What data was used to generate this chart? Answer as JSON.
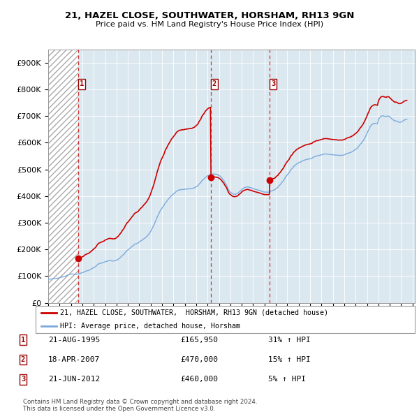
{
  "title": "21, HAZEL CLOSE, SOUTHWATER, HORSHAM, RH13 9GN",
  "subtitle": "Price paid vs. HM Land Registry's House Price Index (HPI)",
  "legend_label_red": "21, HAZEL CLOSE, SOUTHWATER,  HORSHAM, RH13 9GN (detached house)",
  "legend_label_blue": "HPI: Average price, detached house, Horsham",
  "footer1": "Contains HM Land Registry data © Crown copyright and database right 2024.",
  "footer2": "This data is licensed under the Open Government Licence v3.0.",
  "transactions": [
    {
      "num": 1,
      "date": "21-AUG-1995",
      "price": 165950,
      "pct": "31%",
      "dir": "↑"
    },
    {
      "num": 2,
      "date": "18-APR-2007",
      "price": 470000,
      "pct": "15%",
      "dir": "↑"
    },
    {
      "num": 3,
      "date": "21-JUN-2012",
      "price": 460000,
      "pct": "5%",
      "dir": "↑"
    }
  ],
  "transaction_years": [
    1995.64,
    2007.3,
    2012.47
  ],
  "ylim": [
    0,
    950000
  ],
  "yticks": [
    0,
    100000,
    200000,
    300000,
    400000,
    500000,
    600000,
    700000,
    800000,
    900000
  ],
  "ytick_labels": [
    "£0",
    "£100K",
    "£200K",
    "£300K",
    "£400K",
    "£500K",
    "£600K",
    "£700K",
    "£800K",
    "£900K"
  ],
  "hpi_color": "#7aaadd",
  "price_color": "#cc0000",
  "marker_color": "#cc0000",
  "dashed_color": "#cc3333",
  "background_color": "#dce8f0",
  "hpi_data_dates": [
    1993.0,
    1993.08,
    1993.17,
    1993.25,
    1993.33,
    1993.42,
    1993.5,
    1993.58,
    1993.67,
    1993.75,
    1993.83,
    1993.92,
    1994.0,
    1994.08,
    1994.17,
    1994.25,
    1994.33,
    1994.42,
    1994.5,
    1994.58,
    1994.67,
    1994.75,
    1994.83,
    1994.92,
    1995.0,
    1995.08,
    1995.17,
    1995.25,
    1995.33,
    1995.42,
    1995.5,
    1995.58,
    1995.67,
    1995.75,
    1995.83,
    1995.92,
    1996.0,
    1996.08,
    1996.17,
    1996.25,
    1996.33,
    1996.42,
    1996.5,
    1996.58,
    1996.67,
    1996.75,
    1996.83,
    1996.92,
    1997.0,
    1997.08,
    1997.17,
    1997.25,
    1997.33,
    1997.42,
    1997.5,
    1997.58,
    1997.67,
    1997.75,
    1997.83,
    1997.92,
    1998.0,
    1998.08,
    1998.17,
    1998.25,
    1998.33,
    1998.42,
    1998.5,
    1998.58,
    1998.67,
    1998.75,
    1998.83,
    1998.92,
    1999.0,
    1999.08,
    1999.17,
    1999.25,
    1999.33,
    1999.42,
    1999.5,
    1999.58,
    1999.67,
    1999.75,
    1999.83,
    1999.92,
    2000.0,
    2000.08,
    2000.17,
    2000.25,
    2000.33,
    2000.42,
    2000.5,
    2000.58,
    2000.67,
    2000.75,
    2000.83,
    2000.92,
    2001.0,
    2001.08,
    2001.17,
    2001.25,
    2001.33,
    2001.42,
    2001.5,
    2001.58,
    2001.67,
    2001.75,
    2001.83,
    2001.92,
    2002.0,
    2002.08,
    2002.17,
    2002.25,
    2002.33,
    2002.42,
    2002.5,
    2002.58,
    2002.67,
    2002.75,
    2002.83,
    2002.92,
    2003.0,
    2003.08,
    2003.17,
    2003.25,
    2003.33,
    2003.42,
    2003.5,
    2003.58,
    2003.67,
    2003.75,
    2003.83,
    2003.92,
    2004.0,
    2004.08,
    2004.17,
    2004.25,
    2004.33,
    2004.42,
    2004.5,
    2004.58,
    2004.67,
    2004.75,
    2004.83,
    2004.92,
    2005.0,
    2005.08,
    2005.17,
    2005.25,
    2005.33,
    2005.42,
    2005.5,
    2005.58,
    2005.67,
    2005.75,
    2005.83,
    2005.92,
    2006.0,
    2006.08,
    2006.17,
    2006.25,
    2006.33,
    2006.42,
    2006.5,
    2006.58,
    2006.67,
    2006.75,
    2006.83,
    2006.92,
    2007.0,
    2007.08,
    2007.17,
    2007.25,
    2007.33,
    2007.42,
    2007.5,
    2007.58,
    2007.67,
    2007.75,
    2007.83,
    2007.92,
    2008.0,
    2008.08,
    2008.17,
    2008.25,
    2008.33,
    2008.42,
    2008.5,
    2008.58,
    2008.67,
    2008.75,
    2008.83,
    2008.92,
    2009.0,
    2009.08,
    2009.17,
    2009.25,
    2009.33,
    2009.42,
    2009.5,
    2009.58,
    2009.67,
    2009.75,
    2009.83,
    2009.92,
    2010.0,
    2010.08,
    2010.17,
    2010.25,
    2010.33,
    2010.42,
    2010.5,
    2010.58,
    2010.67,
    2010.75,
    2010.83,
    2010.92,
    2011.0,
    2011.08,
    2011.17,
    2011.25,
    2011.33,
    2011.42,
    2011.5,
    2011.58,
    2011.67,
    2011.75,
    2011.83,
    2011.92,
    2012.0,
    2012.08,
    2012.17,
    2012.25,
    2012.33,
    2012.42,
    2012.5,
    2012.58,
    2012.67,
    2012.75,
    2012.83,
    2012.92,
    2013.0,
    2013.08,
    2013.17,
    2013.25,
    2013.33,
    2013.42,
    2013.5,
    2013.58,
    2013.67,
    2013.75,
    2013.83,
    2013.92,
    2014.0,
    2014.08,
    2014.17,
    2014.25,
    2014.33,
    2014.42,
    2014.5,
    2014.58,
    2014.67,
    2014.75,
    2014.83,
    2014.92,
    2015.0,
    2015.08,
    2015.17,
    2015.25,
    2015.33,
    2015.42,
    2015.5,
    2015.58,
    2015.67,
    2015.75,
    2015.83,
    2015.92,
    2016.0,
    2016.08,
    2016.17,
    2016.25,
    2016.33,
    2016.42,
    2016.5,
    2016.58,
    2016.67,
    2016.75,
    2016.83,
    2016.92,
    2017.0,
    2017.08,
    2017.17,
    2017.25,
    2017.33,
    2017.42,
    2017.5,
    2017.58,
    2017.67,
    2017.75,
    2017.83,
    2017.92,
    2018.0,
    2018.08,
    2018.17,
    2018.25,
    2018.33,
    2018.42,
    2018.5,
    2018.58,
    2018.67,
    2018.75,
    2018.83,
    2018.92,
    2019.0,
    2019.08,
    2019.17,
    2019.25,
    2019.33,
    2019.42,
    2019.5,
    2019.58,
    2019.67,
    2019.75,
    2019.83,
    2019.92,
    2020.0,
    2020.08,
    2020.17,
    2020.25,
    2020.33,
    2020.42,
    2020.5,
    2020.58,
    2020.67,
    2020.75,
    2020.83,
    2020.92,
    2021.0,
    2021.08,
    2021.17,
    2021.25,
    2021.33,
    2021.42,
    2021.5,
    2021.58,
    2021.67,
    2021.75,
    2021.83,
    2021.92,
    2022.0,
    2022.08,
    2022.17,
    2022.25,
    2022.33,
    2022.42,
    2022.5,
    2022.58,
    2022.67,
    2022.75,
    2022.83,
    2022.92,
    2023.0,
    2023.08,
    2023.17,
    2023.25,
    2023.33,
    2023.42,
    2023.5,
    2023.58,
    2023.67,
    2023.75,
    2023.83,
    2023.92,
    2024.0,
    2024.08,
    2024.17,
    2024.25,
    2024.33,
    2024.42,
    2024.5
  ],
  "hpi_data_values": [
    88000,
    88500,
    89000,
    89500,
    90000,
    90500,
    91000,
    91000,
    91000,
    91500,
    92000,
    93000,
    94000,
    95000,
    96000,
    97000,
    98000,
    99000,
    100000,
    101000,
    103000,
    105000,
    106000,
    107000,
    108000,
    108000,
    108000,
    107500,
    107000,
    107000,
    107500,
    108000,
    109000,
    110000,
    111000,
    112000,
    113000,
    114000,
    116000,
    118000,
    119000,
    120000,
    121000,
    122000,
    124000,
    126000,
    128000,
    130000,
    132000,
    134000,
    136000,
    140000,
    143000,
    146000,
    147000,
    148000,
    149000,
    150000,
    151000,
    152000,
    154000,
    155000,
    156000,
    157000,
    158000,
    158000,
    158000,
    157500,
    157000,
    157000,
    157500,
    158000,
    160000,
    162000,
    164000,
    167000,
    170000,
    173000,
    177000,
    180000,
    183000,
    188000,
    192000,
    196000,
    198000,
    201000,
    204000,
    207000,
    210000,
    213000,
    216000,
    219000,
    221000,
    222000,
    223000,
    225000,
    228000,
    231000,
    233000,
    235000,
    238000,
    241000,
    243000,
    246000,
    249000,
    253000,
    257000,
    262000,
    268000,
    275000,
    282000,
    288000,
    296000,
    305000,
    313000,
    322000,
    330000,
    337000,
    344000,
    351000,
    355000,
    360000,
    365000,
    372000,
    377000,
    381000,
    386000,
    390000,
    394000,
    398000,
    402000,
    405000,
    408000,
    411000,
    414000,
    418000,
    420000,
    422000,
    423000,
    424000,
    424000,
    425000,
    425000,
    425000,
    426000,
    426000,
    427000,
    427000,
    427000,
    428000,
    428000,
    428000,
    429000,
    430000,
    431000,
    433000,
    435000,
    437000,
    440000,
    445000,
    448000,
    452000,
    458000,
    461000,
    464000,
    468000,
    471000,
    474000,
    476000,
    478000,
    479000,
    480000,
    481000,
    482000,
    483000,
    483000,
    482000,
    482000,
    481000,
    480000,
    478000,
    475000,
    472000,
    468000,
    463000,
    459000,
    452000,
    447000,
    441000,
    432000,
    424000,
    418000,
    415000,
    412000,
    409000,
    408000,
    407000,
    407000,
    408000,
    409000,
    411000,
    415000,
    418000,
    421000,
    425000,
    428000,
    430000,
    432000,
    433000,
    434000,
    435000,
    434000,
    433000,
    432000,
    431000,
    430000,
    428000,
    427000,
    426000,
    425000,
    424000,
    423000,
    422000,
    421000,
    420000,
    418000,
    417000,
    416000,
    415000,
    415000,
    415000,
    415000,
    415000,
    415000,
    418000,
    419000,
    420000,
    422000,
    423000,
    424000,
    428000,
    431000,
    433000,
    438000,
    441000,
    445000,
    450000,
    454000,
    458000,
    465000,
    470000,
    476000,
    480000,
    484000,
    488000,
    495000,
    500000,
    503000,
    508000,
    512000,
    515000,
    518000,
    521000,
    523000,
    525000,
    527000,
    528000,
    530000,
    532000,
    533000,
    535000,
    536000,
    537000,
    538000,
    539000,
    539000,
    540000,
    541000,
    542000,
    545000,
    547000,
    548000,
    550000,
    551000,
    551000,
    552000,
    553000,
    554000,
    555000,
    556000,
    557000,
    558000,
    558000,
    558000,
    558000,
    557000,
    557000,
    556000,
    556000,
    555000,
    555000,
    555000,
    554000,
    554000,
    554000,
    553000,
    553000,
    553000,
    553000,
    553000,
    553000,
    554000,
    555000,
    556000,
    558000,
    560000,
    561000,
    562000,
    563000,
    564000,
    566000,
    568000,
    570000,
    573000,
    575000,
    578000,
    581000,
    585000,
    590000,
    595000,
    598000,
    603000,
    608000,
    614000,
    620000,
    628000,
    635000,
    643000,
    650000,
    658000,
    664000,
    668000,
    670000,
    672000,
    673000,
    673000,
    672000,
    671000,
    685000,
    692000,
    697000,
    700000,
    701000,
    701000,
    700000,
    699000,
    698000,
    700000,
    700000,
    700000,
    697000,
    694000,
    690000,
    688000,
    685000,
    682000,
    682000,
    682000,
    680000,
    678000,
    677000,
    677000,
    678000,
    680000,
    682000,
    685000,
    686000,
    687000,
    688000
  ]
}
